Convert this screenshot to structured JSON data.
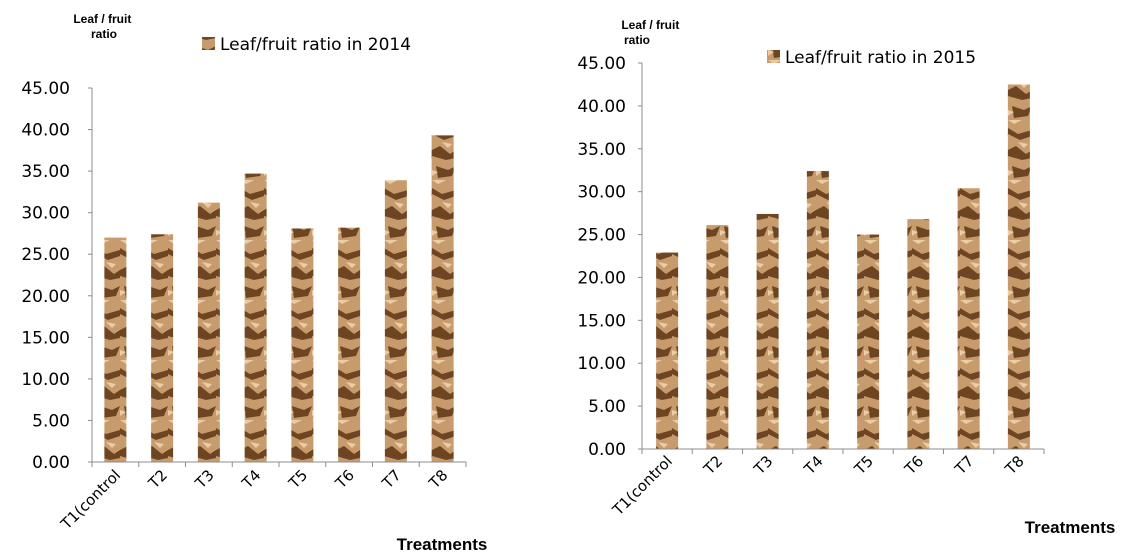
{
  "colors": {
    "bar_base": "#c79b6b",
    "bar_dark": "#6e4523",
    "bar_light": "#e9cda6",
    "axis": "#8c8c8c"
  },
  "chart_data": [
    {
      "type": "bar",
      "ylabel": "Leaf / fruit ratio",
      "xlabel": "Treatments",
      "ylim": [
        0,
        45
      ],
      "y_ticks": [
        "0.00",
        "5.00",
        "10.00",
        "15.00",
        "20.00",
        "25.00",
        "30.00",
        "35.00",
        "40.00",
        "45.00"
      ],
      "categories": [
        "T1(control",
        "T2",
        "T3",
        "T4",
        "T5",
        "T6",
        "T7",
        "T8"
      ],
      "series": [
        {
          "name": "Leaf/fruit ratio in 2014",
          "values": [
            27.0,
            27.4,
            31.2,
            34.7,
            28.1,
            28.2,
            33.9,
            39.3
          ]
        }
      ],
      "legend": "top"
    },
    {
      "type": "bar",
      "ylabel": "Leaf / fruit ratio",
      "xlabel": "Treatments",
      "ylim": [
        0,
        45
      ],
      "y_ticks": [
        "0.00",
        "5.00",
        "10.00",
        "15.00",
        "20.00",
        "25.00",
        "30.00",
        "35.00",
        "40.00",
        "45.00"
      ],
      "categories": [
        "T1(control",
        "T2",
        "T3",
        "T4",
        "T5",
        "T6",
        "T7",
        "T8"
      ],
      "series": [
        {
          "name": "Leaf/fruit ratio in 2015",
          "values": [
            22.9,
            26.1,
            27.4,
            32.4,
            25.0,
            26.8,
            30.4,
            42.5
          ]
        }
      ],
      "legend": "top"
    }
  ]
}
